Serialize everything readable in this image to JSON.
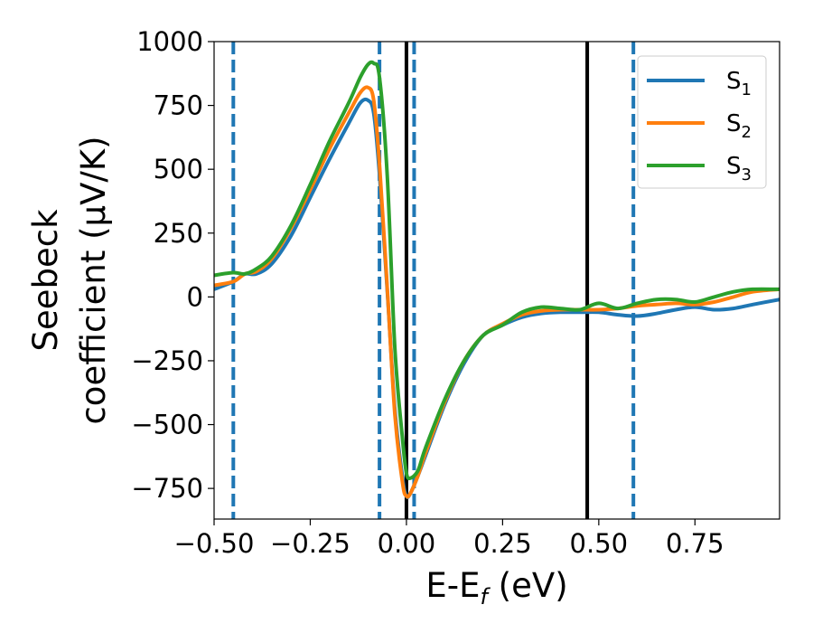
{
  "chart_data": {
    "type": "line",
    "xlabel_main": "E-E",
    "xlabel_sub": "f",
    "xlabel_unit": " (eV)",
    "ylabel_line1": "Seebeck",
    "ylabel_line2": "coefficient  (μV/K)",
    "xlim": [
      -0.5,
      0.97
    ],
    "ylim": [
      -870,
      1000
    ],
    "xticks": [
      -0.5,
      -0.25,
      0.0,
      0.25,
      0.5,
      0.75
    ],
    "xtick_labels": [
      "−0.50",
      "−0.25",
      "0.00",
      "0.25",
      "0.50",
      "0.75"
    ],
    "yticks": [
      1000,
      750,
      500,
      250,
      0,
      -250,
      -500,
      -750
    ],
    "ytick_labels": [
      "1000",
      "750",
      "500",
      "250",
      "0",
      "−250",
      "−500",
      "−750"
    ],
    "grid": false,
    "legend_position": "top-right",
    "vlines_solid": [
      0.0,
      0.47
    ],
    "vlines_dashed": [
      -0.45,
      -0.07,
      0.02,
      0.59
    ],
    "series": [
      {
        "name": "S",
        "sub": "1",
        "color": "#1f77b4",
        "x": [
          -0.5,
          -0.45,
          -0.42,
          -0.39,
          -0.35,
          -0.3,
          -0.25,
          -0.2,
          -0.15,
          -0.12,
          -0.1,
          -0.085,
          -0.07,
          -0.05,
          -0.03,
          -0.01,
          0.0,
          0.01,
          0.03,
          0.05,
          0.1,
          0.15,
          0.2,
          0.25,
          0.3,
          0.35,
          0.4,
          0.45,
          0.5,
          0.55,
          0.6,
          0.65,
          0.7,
          0.75,
          0.8,
          0.85,
          0.9,
          0.97
        ],
        "y": [
          30,
          60,
          90,
          90,
          130,
          240,
          390,
          540,
          680,
          760,
          770,
          720,
          480,
          30,
          -440,
          -710,
          -780,
          -770,
          -700,
          -620,
          -420,
          -260,
          -150,
          -110,
          -80,
          -65,
          -60,
          -60,
          -60,
          -70,
          -75,
          -65,
          -50,
          -40,
          -50,
          -45,
          -30,
          -10
        ]
      },
      {
        "name": "S",
        "sub": "2",
        "color": "#ff7f0e",
        "x": [
          -0.5,
          -0.45,
          -0.42,
          -0.39,
          -0.35,
          -0.3,
          -0.25,
          -0.2,
          -0.15,
          -0.12,
          -0.1,
          -0.085,
          -0.07,
          -0.05,
          -0.03,
          -0.01,
          0.0,
          0.01,
          0.03,
          0.05,
          0.1,
          0.15,
          0.2,
          0.25,
          0.3,
          0.35,
          0.4,
          0.45,
          0.5,
          0.55,
          0.6,
          0.65,
          0.7,
          0.75,
          0.8,
          0.85,
          0.9,
          0.97
        ],
        "y": [
          45,
          60,
          90,
          100,
          150,
          270,
          420,
          580,
          720,
          800,
          820,
          770,
          520,
          40,
          -460,
          -730,
          -780,
          -770,
          -700,
          -610,
          -410,
          -250,
          -150,
          -105,
          -70,
          -55,
          -50,
          -50,
          -50,
          -45,
          -35,
          -30,
          -25,
          -30,
          -20,
          0,
          20,
          30
        ]
      },
      {
        "name": "S",
        "sub": "3",
        "color": "#2ca02c",
        "x": [
          -0.5,
          -0.45,
          -0.42,
          -0.39,
          -0.35,
          -0.3,
          -0.25,
          -0.2,
          -0.15,
          -0.12,
          -0.1,
          -0.085,
          -0.07,
          -0.05,
          -0.03,
          -0.01,
          0.0,
          0.01,
          0.03,
          0.05,
          0.1,
          0.15,
          0.2,
          0.25,
          0.3,
          0.35,
          0.4,
          0.45,
          0.5,
          0.55,
          0.6,
          0.65,
          0.7,
          0.75,
          0.8,
          0.85,
          0.9,
          0.97
        ],
        "y": [
          85,
          95,
          90,
          110,
          160,
          280,
          440,
          610,
          760,
          860,
          910,
          915,
          860,
          480,
          -200,
          -560,
          -690,
          -710,
          -680,
          -590,
          -400,
          -250,
          -150,
          -110,
          -60,
          -40,
          -45,
          -50,
          -25,
          -45,
          -25,
          -10,
          -10,
          -20,
          0,
          20,
          30,
          30
        ]
      }
    ]
  }
}
